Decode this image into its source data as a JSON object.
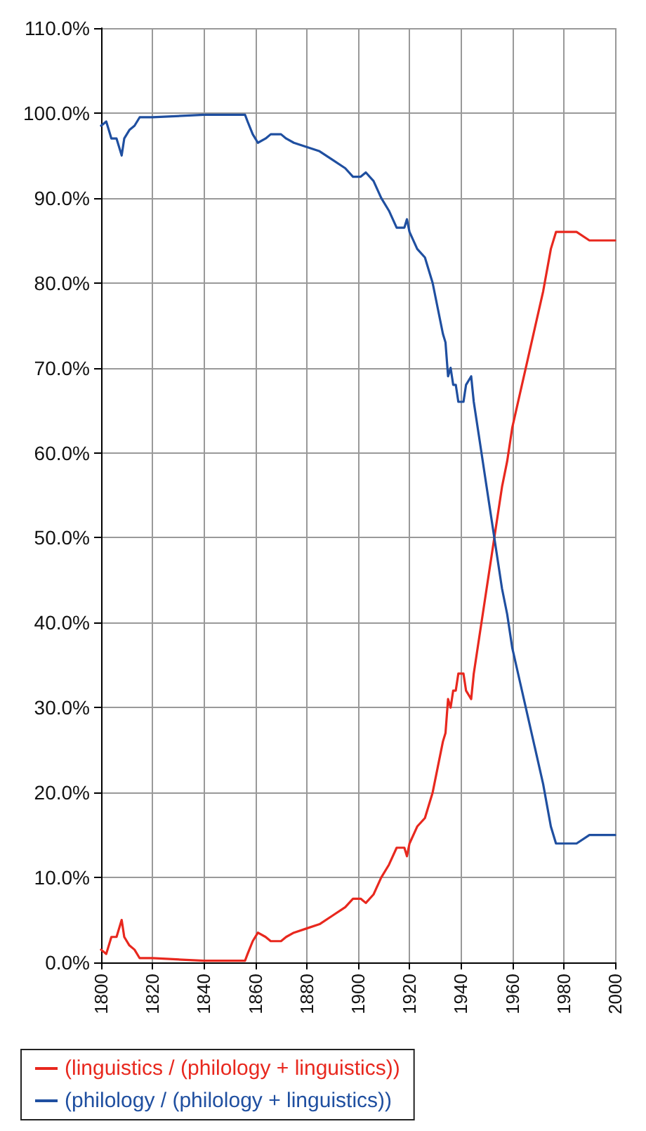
{
  "chart_data": {
    "type": "line",
    "x": [
      1800,
      1802,
      1804,
      1806,
      1808,
      1809,
      1811,
      1813,
      1815,
      1820,
      1840,
      1856,
      1857,
      1859,
      1861,
      1864,
      1866,
      1870,
      1872,
      1875,
      1880,
      1885,
      1890,
      1895,
      1898,
      1901,
      1903,
      1906,
      1909,
      1912,
      1915,
      1918,
      1919,
      1920,
      1923,
      1926,
      1929,
      1931,
      1933,
      1934,
      1935,
      1936,
      1937,
      1938,
      1939,
      1941,
      1942,
      1944,
      1945,
      1947,
      1950,
      1952,
      1954,
      1956,
      1958,
      1960,
      1963,
      1966,
      1969,
      1972,
      1975,
      1977,
      1980,
      1985,
      1990,
      2000
    ],
    "series": [
      {
        "name": "(linguistics / (philology + linguistics))",
        "color": "#e8281e",
        "values": [
          1.5,
          1,
          3,
          3,
          5,
          3,
          2,
          1.5,
          0.5,
          0.5,
          0.2,
          0.2,
          1,
          2.5,
          3.5,
          3,
          2.5,
          2.5,
          3,
          3.5,
          4,
          4.5,
          5.5,
          6.5,
          7.5,
          7.5,
          7,
          8,
          10,
          11.5,
          13.5,
          13.5,
          12.5,
          14,
          16,
          17,
          20,
          23,
          26,
          27,
          31,
          30,
          32,
          32,
          34,
          34,
          32,
          31,
          34,
          38,
          44,
          48,
          52,
          56,
          59,
          63,
          67,
          71,
          75,
          79,
          84,
          86,
          86,
          86,
          85,
          85
        ]
      },
      {
        "name": "(philology / (philology + linguistics))",
        "color": "#1f4fa0",
        "values": [
          98.5,
          99,
          97,
          97,
          95,
          97,
          98,
          98.5,
          99.5,
          99.5,
          99.8,
          99.8,
          99,
          97.5,
          96.5,
          97,
          97.5,
          97.5,
          97,
          96.5,
          96,
          95.5,
          94.5,
          93.5,
          92.5,
          92.5,
          93,
          92,
          90,
          88.5,
          86.5,
          86.5,
          87.5,
          86,
          84,
          83,
          80,
          77,
          74,
          73,
          69,
          70,
          68,
          68,
          66,
          66,
          68,
          69,
          66,
          62,
          56,
          52,
          48,
          44,
          41,
          37,
          33,
          29,
          25,
          21,
          16,
          14,
          14,
          14,
          15,
          15
        ]
      }
    ],
    "xlim": [
      1800,
      2000
    ],
    "xticks": [
      1800,
      1820,
      1840,
      1860,
      1880,
      1900,
      1920,
      1940,
      1960,
      1980,
      2000
    ],
    "ylim": [
      0,
      110
    ],
    "yticks": [
      {
        "value": 0,
        "label": "0.0%"
      },
      {
        "value": 10,
        "label": "10.0%"
      },
      {
        "value": 20,
        "label": "20.0%"
      },
      {
        "value": 30,
        "label": "30.0%"
      },
      {
        "value": 40,
        "label": "40.0%"
      },
      {
        "value": 50,
        "label": "50.0%"
      },
      {
        "value": 60,
        "label": "60.0%"
      },
      {
        "value": 70,
        "label": "70.0%"
      },
      {
        "value": 80,
        "label": "80.0%"
      },
      {
        "value": 90,
        "label": "90.0%"
      },
      {
        "value": 100,
        "label": "100.0%"
      },
      {
        "value": 110,
        "label": "110.0%"
      }
    ],
    "grid": true,
    "legend": "bottom left",
    "marker": "none",
    "line_style": "solid"
  }
}
